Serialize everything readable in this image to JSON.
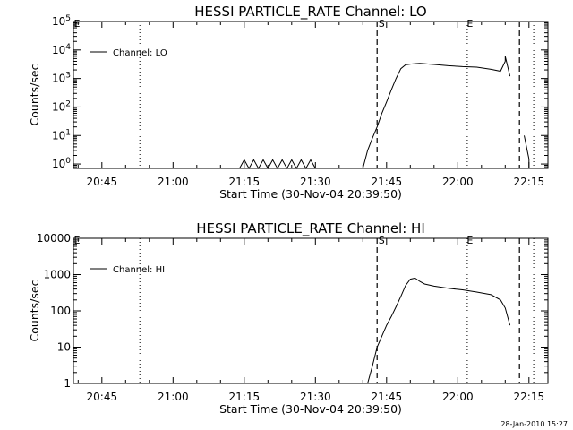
{
  "window": {
    "stamp": "28-Jan-2010 15:27"
  },
  "colors": {
    "ink": "#000000",
    "background": "#ffffff"
  },
  "chart_data": [
    {
      "type": "line",
      "title": "HESSI PARTICLE_RATE Channel: LO",
      "xlabel": "Start Time (30-Nov-04 20:39:50)",
      "ylabel": "Counts/sec",
      "yscale": "log",
      "xlim": [
        "20:39",
        "22:19"
      ],
      "ylim": [
        0.7,
        100000
      ],
      "x_ticks": [
        "20:45",
        "21:00",
        "21:15",
        "21:30",
        "21:45",
        "22:00",
        "22:15"
      ],
      "y_ticks": [
        1,
        10,
        100,
        1000,
        10000,
        100000
      ],
      "y_tick_labels": [
        "10^0",
        "10^1",
        "10^2",
        "10^3",
        "10^4",
        "10^5"
      ],
      "legend": {
        "position": "top-left",
        "label": "Channel: LO"
      },
      "markers": [
        {
          "time": "20:53",
          "style": "dotted",
          "label": ""
        },
        {
          "time": "21:43",
          "style": "dashed",
          "label": "S"
        },
        {
          "time": "22:02",
          "style": "dotted",
          "label": "E"
        },
        {
          "time": "22:13",
          "style": "dashed",
          "label": ""
        },
        {
          "time": "22:16",
          "style": "dotted",
          "label": ""
        }
      ],
      "series": [
        {
          "name": "Channel: LO",
          "x": [
            "21:14",
            "21:15",
            "21:16",
            "21:17",
            "21:18",
            "21:19",
            "21:20",
            "21:21",
            "21:22",
            "21:23",
            "21:24",
            "21:25",
            "21:26",
            "21:27",
            "21:28",
            "21:29",
            "21:30"
          ],
          "y": [
            0.7,
            1.4,
            0.7,
            1.4,
            0.7,
            1.4,
            0.7,
            1.4,
            0.7,
            1.4,
            0.7,
            1.4,
            0.7,
            1.4,
            0.7,
            1.4,
            0.7
          ]
        },
        {
          "name": "",
          "x": [
            "21:40",
            "21:41",
            "21:42",
            "21:43",
            "21:44",
            "21:45",
            "21:46",
            "21:47",
            "21:48",
            "21:49",
            "21:50",
            "21:51",
            "21:52",
            "21:53",
            "21:54",
            "21:55",
            "21:58",
            "22:01",
            "22:04",
            "22:07",
            "22:09",
            "22:10",
            "22:10",
            "22:11"
          ],
          "y": [
            0.7,
            3,
            8,
            20,
            60,
            150,
            400,
            1000,
            2200,
            3000,
            3200,
            3300,
            3400,
            3300,
            3200,
            3100,
            2800,
            2600,
            2500,
            2100,
            1800,
            4000,
            6000,
            1200
          ]
        },
        {
          "name": "",
          "x": [
            "22:14",
            "22:15",
            "22:15"
          ],
          "y": [
            10,
            1.5,
            0.7
          ]
        }
      ]
    },
    {
      "type": "line",
      "title": "HESSI PARTICLE_RATE Channel: HI",
      "xlabel": "Start Time (30-Nov-04 20:39:50)",
      "ylabel": "Counts/sec",
      "yscale": "log",
      "xlim": [
        "20:39",
        "22:19"
      ],
      "ylim": [
        1,
        10000
      ],
      "x_ticks": [
        "20:45",
        "21:00",
        "21:15",
        "21:30",
        "21:45",
        "22:00",
        "22:15"
      ],
      "y_ticks": [
        1,
        10,
        100,
        1000,
        10000
      ],
      "y_tick_labels": [
        "1",
        "10",
        "100",
        "1000",
        "10000"
      ],
      "legend": {
        "position": "top-left",
        "label": "Channel: HI"
      },
      "markers": [
        {
          "time": "20:53",
          "style": "dotted",
          "label": ""
        },
        {
          "time": "21:43",
          "style": "dashed",
          "label": "S"
        },
        {
          "time": "22:02",
          "style": "dotted",
          "label": "E"
        },
        {
          "time": "22:13",
          "style": "dashed",
          "label": ""
        },
        {
          "time": "22:16",
          "style": "dotted",
          "label": ""
        }
      ],
      "series": [
        {
          "name": "Channel: HI",
          "x": [
            "21:41",
            "21:42",
            "21:43",
            "21:44",
            "21:45",
            "21:46",
            "21:47",
            "21:48",
            "21:49",
            "21:50",
            "21:51",
            "21:52",
            "21:53",
            "21:55",
            "21:58",
            "22:01",
            "22:04",
            "22:07",
            "22:09",
            "22:10",
            "22:11"
          ],
          "y": [
            1,
            3,
            10,
            20,
            40,
            70,
            130,
            250,
            500,
            750,
            800,
            650,
            550,
            480,
            420,
            380,
            330,
            280,
            200,
            120,
            40
          ]
        }
      ]
    }
  ]
}
